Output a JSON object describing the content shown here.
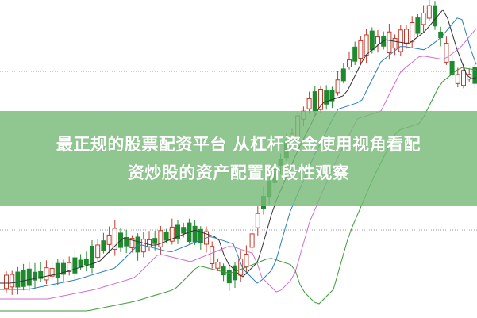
{
  "article": {
    "title_line1": "最正规的股票配资平台 从杠杆资金使用视角看配",
    "title_line2": "资炒股的资产配置阶段性观察"
  },
  "colors": {
    "up": "#c0392b",
    "down": "#1e8a2e",
    "banner": "#78b978"
  },
  "chart_type": "candlestick background (decorative, no axes)"
}
